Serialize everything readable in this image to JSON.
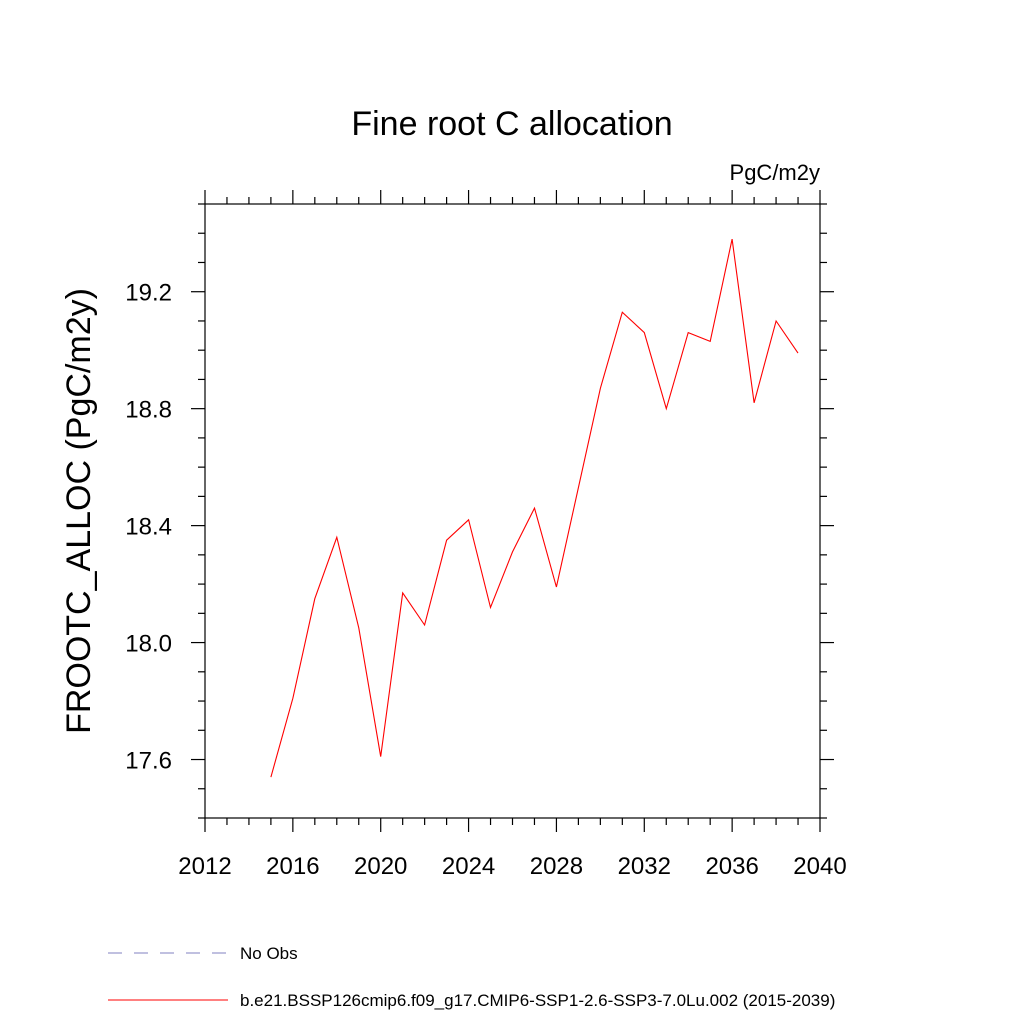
{
  "chart_data": {
    "type": "line",
    "title": "Fine root C allocation",
    "units_label": "PgC/m2y",
    "xlabel": "",
    "ylabel": "FROOTC_ALLOC  (PgC/m2y)",
    "xlim": [
      2012,
      2040
    ],
    "ylim": [
      17.4,
      19.5
    ],
    "x_ticks": [
      2012,
      2016,
      2020,
      2024,
      2028,
      2032,
      2036,
      2040
    ],
    "y_ticks": [
      17.6,
      18.0,
      18.4,
      18.8,
      19.2
    ],
    "grid": false,
    "legend": {
      "placement": "bottom-left",
      "entries": [
        {
          "name": "No Obs",
          "color": "#8080c0",
          "style": "dashed"
        },
        {
          "name": "b.e21.BSSP126cmip6.f09_g17.CMIP6-SSP1-2.6-SSP3-7.0Lu.002 (2015-2039)",
          "color": "#ff0000",
          "style": "solid"
        }
      ]
    },
    "series": [
      {
        "name": "b.e21.BSSP126cmip6.f09_g17.CMIP6-SSP1-2.6-SSP3-7.0Lu.002 (2015-2039)",
        "color": "#ff0000",
        "x": [
          2015,
          2016,
          2017,
          2018,
          2019,
          2020,
          2021,
          2022,
          2023,
          2024,
          2025,
          2026,
          2027,
          2028,
          2029,
          2030,
          2031,
          2032,
          2033,
          2034,
          2035,
          2036,
          2037,
          2038,
          2039
        ],
        "y": [
          17.54,
          17.81,
          18.15,
          18.36,
          18.05,
          17.61,
          18.17,
          18.06,
          18.35,
          18.42,
          18.12,
          18.31,
          18.46,
          18.19,
          18.53,
          18.87,
          19.13,
          19.06,
          18.8,
          19.06,
          19.03,
          19.38,
          18.82,
          19.1,
          18.99
        ]
      }
    ]
  }
}
